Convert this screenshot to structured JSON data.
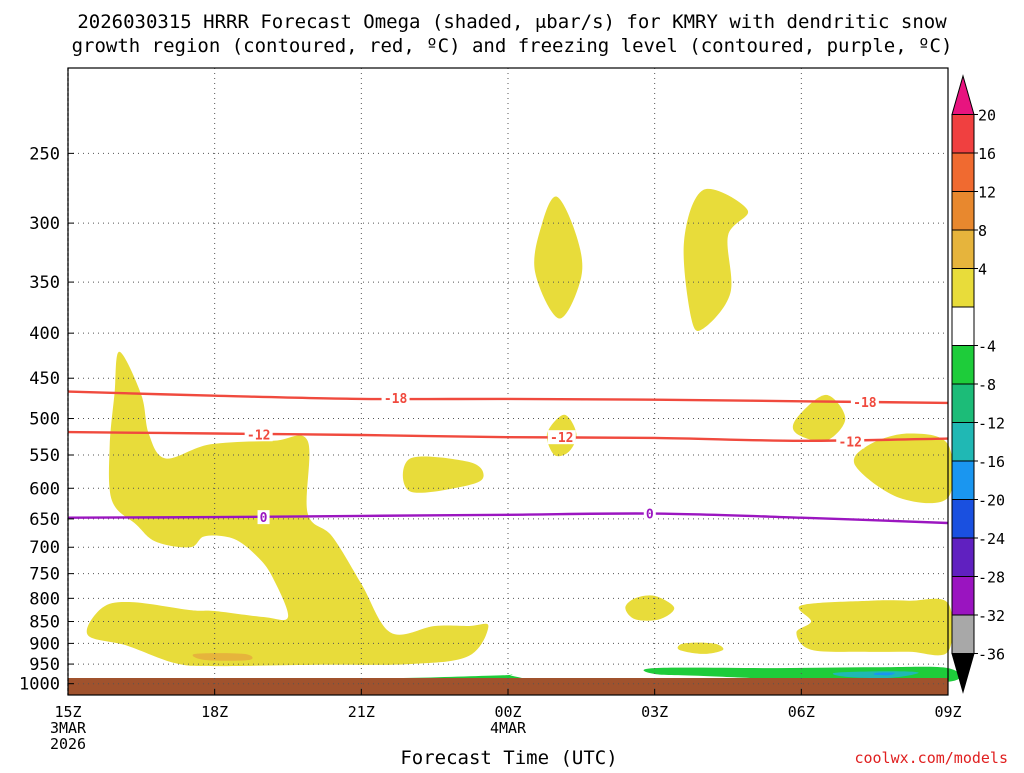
{
  "chart_data": {
    "type": "heatmap",
    "title_lines": [
      "2026030315 HRRR Forecast Omega (shaded, μbar/s) for KMRY with dendritic snow",
      "growth region (contoured, red, ºC) and freezing level (contoured, purple, ºC)"
    ],
    "xlabel": "Forecast Time (UTC)",
    "watermark": "coolwx.com/models",
    "x_hours_range": [
      0,
      18
    ],
    "y_hpa_range": [
      200,
      1030
    ],
    "x_ticks": [
      {
        "hour": 0,
        "lines": [
          "15Z",
          "3MAR",
          "2026"
        ]
      },
      {
        "hour": 3,
        "lines": [
          "18Z"
        ]
      },
      {
        "hour": 6,
        "lines": [
          "21Z"
        ]
      },
      {
        "hour": 9,
        "lines": [
          "00Z",
          "4MAR"
        ]
      },
      {
        "hour": 12,
        "lines": [
          "03Z"
        ]
      },
      {
        "hour": 15,
        "lines": [
          "06Z"
        ]
      },
      {
        "hour": 18,
        "lines": [
          "09Z"
        ]
      }
    ],
    "y_ticks": [
      250,
      300,
      350,
      400,
      450,
      500,
      550,
      600,
      650,
      700,
      750,
      800,
      850,
      900,
      950,
      1000
    ],
    "colorbar": {
      "bands": [
        {
          "color": "#e8147f",
          "label": ""
        },
        {
          "color": "#f04040",
          "label": "20"
        },
        {
          "color": "#f06a30",
          "label": "16"
        },
        {
          "color": "#e8882e",
          "label": "12"
        },
        {
          "color": "#e6b43c",
          "label": "8"
        },
        {
          "color": "#e8dc3a",
          "label": "4"
        },
        {
          "color": "#ffffff",
          "label": ""
        },
        {
          "color": "#1ecc3a",
          "label": "-4"
        },
        {
          "color": "#1cbc78",
          "label": "-8"
        },
        {
          "color": "#20b8b4",
          "label": "-12"
        },
        {
          "color": "#1a96f0",
          "label": "-16"
        },
        {
          "color": "#1a50e0",
          "label": "-20"
        },
        {
          "color": "#6020c0",
          "label": "-24"
        },
        {
          "color": "#9a14c0",
          "label": "-28"
        },
        {
          "color": "#a8a8a8",
          "label": "-32"
        },
        {
          "color": "#000000",
          "label": "-36"
        }
      ]
    },
    "contours": [
      {
        "name": "dgz-minus18",
        "label": "-18",
        "color": "#f04a3e",
        "points": [
          [
            0,
            466
          ],
          [
            3,
            471
          ],
          [
            6,
            475
          ],
          [
            9,
            475
          ],
          [
            12,
            476
          ],
          [
            15,
            478
          ],
          [
            18,
            480
          ]
        ],
        "label_positions": [
          [
            6.7,
            474
          ],
          [
            16.3,
            479
          ]
        ]
      },
      {
        "name": "dgz-minus12",
        "label": "-12",
        "color": "#f04a3e",
        "points": [
          [
            0,
            518
          ],
          [
            3,
            520
          ],
          [
            6,
            522
          ],
          [
            9,
            525
          ],
          [
            12,
            526
          ],
          [
            15,
            530
          ],
          [
            18,
            527
          ]
        ],
        "label_positions": [
          [
            3.9,
            521
          ],
          [
            10.1,
            525
          ],
          [
            16.0,
            531
          ]
        ]
      },
      {
        "name": "freezing-level-0",
        "label": "0",
        "color": "#9b16c0",
        "points": [
          [
            0,
            648
          ],
          [
            3,
            647
          ],
          [
            6,
            645
          ],
          [
            9,
            643
          ],
          [
            12,
            641
          ],
          [
            15,
            648
          ],
          [
            18,
            657
          ]
        ],
        "label_positions": [
          [
            4.0,
            647
          ],
          [
            11.9,
            641
          ]
        ]
      }
    ],
    "shaded_regions": [
      {
        "name": "omega-pos4-upper-a",
        "color": "#e8dc3a",
        "points": [
          [
            10,
            280
          ],
          [
            10.4,
            310
          ],
          [
            10.5,
            345
          ],
          [
            10.05,
            385
          ],
          [
            9.55,
            340
          ],
          [
            9.7,
            300
          ]
        ]
      },
      {
        "name": "omega-pos4-upper-b",
        "color": "#e8dc3a",
        "points": [
          [
            13.0,
            275
          ],
          [
            13.9,
            290
          ],
          [
            13.5,
            310
          ],
          [
            13.55,
            360
          ],
          [
            13.0,
            395
          ],
          [
            12.75,
            385
          ],
          [
            12.6,
            315
          ]
        ]
      },
      {
        "name": "omega-pos4-main",
        "color": "#e8dc3a",
        "points": [
          [
            1.05,
            420
          ],
          [
            1.5,
            470
          ],
          [
            1.65,
            520
          ],
          [
            2.0,
            555
          ],
          [
            2.9,
            535
          ],
          [
            4.2,
            530
          ],
          [
            4.9,
            530
          ],
          [
            4.9,
            640
          ],
          [
            5.4,
            680
          ],
          [
            6,
            770
          ],
          [
            6.6,
            875
          ],
          [
            7.5,
            860
          ],
          [
            8.2,
            860
          ],
          [
            8.6,
            860
          ],
          [
            8.2,
            930
          ],
          [
            7,
            950
          ],
          [
            5,
            952
          ],
          [
            3,
            955
          ],
          [
            2.2,
            948
          ],
          [
            1.2,
            905
          ],
          [
            0.4,
            880
          ],
          [
            0.7,
            820
          ],
          [
            1.3,
            808
          ],
          [
            2.5,
            825
          ],
          [
            3,
            827
          ],
          [
            4,
            840
          ],
          [
            4.5,
            840
          ],
          [
            4.2,
            760
          ],
          [
            3.9,
            720
          ],
          [
            3.4,
            685
          ],
          [
            2.8,
            680
          ],
          [
            2.5,
            700
          ],
          [
            1.8,
            690
          ],
          [
            1.4,
            660
          ],
          [
            0.9,
            620
          ],
          [
            0.85,
            540
          ],
          [
            0.95,
            470
          ]
        ]
      },
      {
        "name": "omega-pos4-mid-a",
        "color": "#e8dc3a",
        "points": [
          [
            7.0,
            555
          ],
          [
            8.2,
            560
          ],
          [
            8.5,
            580
          ],
          [
            8.2,
            595
          ],
          [
            7.0,
            605
          ]
        ]
      },
      {
        "name": "omega-pos4-mid-b",
        "color": "#e8dc3a",
        "points": [
          [
            10.15,
            495
          ],
          [
            10.4,
            520
          ],
          [
            10.25,
            545
          ],
          [
            9.95,
            550
          ],
          [
            9.8,
            520
          ]
        ]
      },
      {
        "name": "omega-pos4-mid-c",
        "color": "#e8dc3a",
        "points": [
          [
            15.5,
            470
          ],
          [
            15.9,
            500
          ],
          [
            15.5,
            530
          ],
          [
            14.9,
            520
          ],
          [
            14.9,
            500
          ]
        ]
      },
      {
        "name": "omega-pos4-right-a",
        "color": "#e8dc3a",
        "points": [
          [
            18,
            535
          ],
          [
            17.2,
            520
          ],
          [
            16.4,
            535
          ],
          [
            16.1,
            565
          ],
          [
            17.0,
            615
          ],
          [
            18,
            615
          ]
        ]
      },
      {
        "name": "omega-pos4-low-a",
        "color": "#e8dc3a",
        "points": [
          [
            12.0,
            795
          ],
          [
            12.4,
            820
          ],
          [
            12.1,
            845
          ],
          [
            11.6,
            845
          ],
          [
            11.4,
            820
          ],
          [
            11.6,
            800
          ]
        ]
      },
      {
        "name": "omega-pos4-low-b",
        "color": "#e8dc3a",
        "points": [
          [
            12.6,
            900
          ],
          [
            13.2,
            900
          ],
          [
            13.4,
            915
          ],
          [
            13.0,
            925
          ],
          [
            12.5,
            915
          ]
        ]
      },
      {
        "name": "omega-pos4-low-c",
        "color": "#e8dc3a",
        "points": [
          [
            15.0,
            815
          ],
          [
            16.4,
            805
          ],
          [
            17.2,
            805
          ],
          [
            18,
            810
          ],
          [
            18,
            920
          ],
          [
            17.2,
            920
          ],
          [
            16.3,
            920
          ],
          [
            15.2,
            915
          ],
          [
            14.9,
            875
          ],
          [
            15.2,
            850
          ]
        ]
      },
      {
        "name": "omega-pos8-low",
        "color": "#e6b43c",
        "points": [
          [
            2.6,
            925
          ],
          [
            3.6,
            925
          ],
          [
            3.7,
            940
          ],
          [
            2.8,
            940
          ]
        ]
      },
      {
        "name": "omega-neg4-base-left",
        "color": "#1ecc3a",
        "points": [
          [
            2,
            1000
          ],
          [
            4.5,
            990
          ],
          [
            7,
            985
          ],
          [
            8.9,
            978
          ],
          [
            9.05,
            978
          ],
          [
            9.05,
            1003
          ],
          [
            2.6,
            1003
          ]
        ]
      },
      {
        "name": "omega-neg4-base-right",
        "color": "#1ecc3a",
        "points": [
          [
            12.0,
            960
          ],
          [
            14.5,
            960
          ],
          [
            16.5,
            958
          ],
          [
            18,
            960
          ],
          [
            18,
            995
          ],
          [
            15.5,
            992
          ],
          [
            13.0,
            980
          ],
          [
            12.0,
            975
          ]
        ]
      },
      {
        "name": "omega-neg8-base-right",
        "color": "#20b8b4",
        "points": [
          [
            15.7,
            972
          ],
          [
            16.8,
            968
          ],
          [
            17.4,
            972
          ],
          [
            16.8,
            985
          ],
          [
            15.9,
            982
          ]
        ]
      },
      {
        "name": "omega-neg12-core",
        "color": "#1a96f0",
        "points": [
          [
            16.55,
            972
          ],
          [
            16.9,
            972
          ],
          [
            16.8,
            978
          ],
          [
            16.5,
            977
          ]
        ]
      }
    ]
  }
}
